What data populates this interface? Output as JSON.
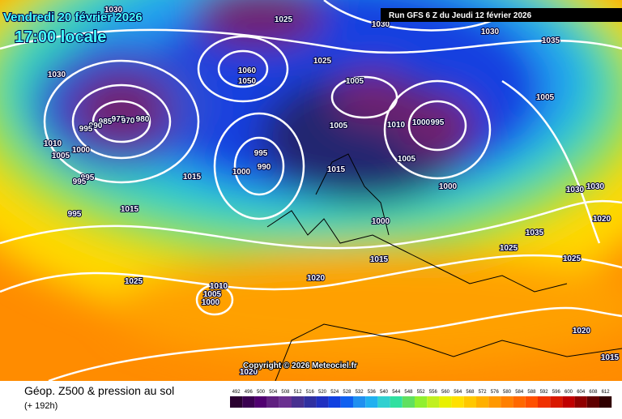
{
  "header": {
    "valid_date": "Vendredi 20 février 2026",
    "local_time": "17:00 locale",
    "run": "Run GFS 6 Z du Jeudi 12 février 2026"
  },
  "copyright": "Copyright © 2026 Meteociel.fr",
  "footer": {
    "title": "Géop. Z500 & pression au sol",
    "lead_time": "(+ 192h)"
  },
  "legend": {
    "levels": [
      492,
      496,
      500,
      504,
      508,
      512,
      516,
      520,
      524,
      528,
      532,
      536,
      540,
      544,
      548,
      552,
      556,
      560,
      564,
      568,
      572,
      576,
      580,
      584,
      588,
      592,
      596,
      600,
      604,
      608,
      612
    ]
  },
  "isobar_labels": [
    "1030",
    "1025",
    "1030",
    "1030",
    "1035",
    "1030",
    "1025",
    "1060",
    "1050",
    "1005",
    "1005",
    "985",
    "975",
    "970",
    "980",
    "990",
    "995",
    "1005",
    "1010",
    "1000",
    "995",
    "1010",
    "1000",
    "1005",
    "995",
    "990",
    "1000",
    "1015",
    "1005",
    "995",
    "995",
    "1015",
    "1000",
    "1030",
    "1030",
    "995",
    "1015",
    "1000",
    "1020",
    "1035",
    "1025",
    "1025",
    "1015",
    "1020",
    "1025",
    "1010",
    "1005",
    "1000",
    "1020",
    "1015",
    "1020"
  ]
}
